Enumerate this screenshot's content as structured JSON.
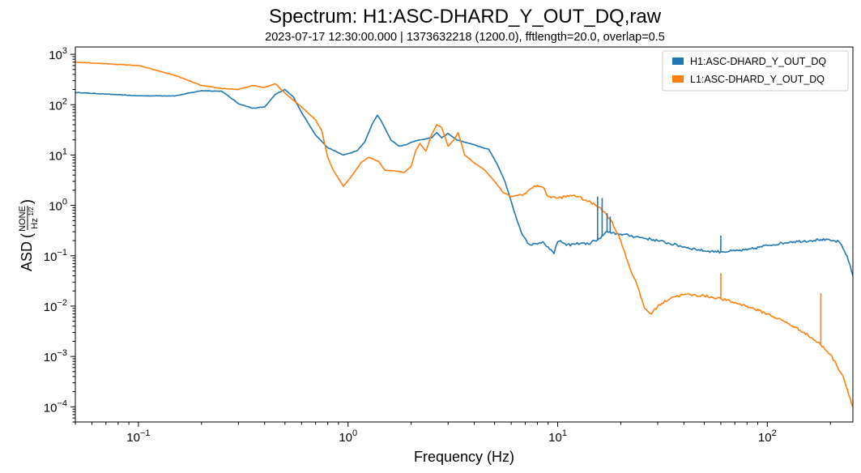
{
  "chart_data": {
    "type": "line",
    "title": "Spectrum: H1:ASC-DHARD_Y_OUT_DQ,raw",
    "subtitle": "2023-07-17 12:30:00.000 | 1373632218 (1200.0), fftlength=20.0, overlap=0.5",
    "xlabel": "Frequency (Hz)",
    "ylabel_prefix": "ASD",
    "ylabel_unit_num": "NONE",
    "ylabel_unit_den": "Hz",
    "ylabel_unit_exp": "1/2",
    "x_scale": "log",
    "y_scale": "log",
    "xlim": [
      0.05,
      256
    ],
    "ylim": [
      5e-05,
      1400
    ],
    "x_ticks": [
      0.1,
      1,
      10,
      100
    ],
    "x_tick_labels": [
      {
        "base": "10",
        "exp": "−1"
      },
      {
        "base": "10",
        "exp": "0"
      },
      {
        "base": "10",
        "exp": "1"
      },
      {
        "base": "10",
        "exp": "2"
      }
    ],
    "y_ticks": [
      0.0001,
      0.001,
      0.01,
      0.1,
      1,
      10,
      100,
      1000
    ],
    "y_tick_labels": [
      {
        "base": "10",
        "exp": "−4"
      },
      {
        "base": "10",
        "exp": "−3"
      },
      {
        "base": "10",
        "exp": "−2"
      },
      {
        "base": "10",
        "exp": "−1"
      },
      {
        "base": "10",
        "exp": "0"
      },
      {
        "base": "10",
        "exp": "1"
      },
      {
        "base": "10",
        "exp": "2"
      },
      {
        "base": "10",
        "exp": "3"
      }
    ],
    "grid": false,
    "legend_position": "top-right",
    "series": [
      {
        "name": "H1:ASC-DHARD_Y_OUT_DQ",
        "color": "#1f77b4",
        "points": [
          [
            0.05,
            175
          ],
          [
            0.1,
            150
          ],
          [
            0.15,
            150
          ],
          [
            0.2,
            190
          ],
          [
            0.25,
            185
          ],
          [
            0.3,
            105
          ],
          [
            0.35,
            85
          ],
          [
            0.4,
            90
          ],
          [
            0.45,
            160
          ],
          [
            0.5,
            200
          ],
          [
            0.55,
            140
          ],
          [
            0.6,
            70
          ],
          [
            0.7,
            25
          ],
          [
            0.8,
            14
          ],
          [
            0.95,
            10
          ],
          [
            1.1,
            12
          ],
          [
            1.2,
            18
          ],
          [
            1.3,
            40
          ],
          [
            1.38,
            62
          ],
          [
            1.45,
            45
          ],
          [
            1.6,
            20
          ],
          [
            1.75,
            15
          ],
          [
            1.9,
            16
          ],
          [
            2.0,
            18
          ],
          [
            2.2,
            20
          ],
          [
            2.5,
            22
          ],
          [
            2.65,
            28
          ],
          [
            2.8,
            22
          ],
          [
            3.0,
            27
          ],
          [
            3.3,
            20
          ],
          [
            3.6,
            18
          ],
          [
            4.0,
            16
          ],
          [
            4.4,
            14
          ],
          [
            4.7,
            13
          ],
          [
            5.2,
            6
          ],
          [
            5.6,
            3
          ],
          [
            6.0,
            1.2
          ],
          [
            6.4,
            0.5
          ],
          [
            6.8,
            0.26
          ],
          [
            7.3,
            0.17
          ],
          [
            8.0,
            0.17
          ],
          [
            8.5,
            0.19
          ],
          [
            9.0,
            0.15
          ],
          [
            9.6,
            0.11
          ],
          [
            10.0,
            0.19
          ],
          [
            10.3,
            0.2
          ],
          [
            11,
            0.16
          ],
          [
            12,
            0.17
          ],
          [
            13,
            0.18
          ],
          [
            14,
            0.17
          ],
          [
            15,
            0.2
          ],
          [
            16,
            0.22
          ],
          [
            17,
            0.3
          ],
          [
            18,
            0.28
          ],
          [
            20,
            0.27
          ],
          [
            25,
            0.23
          ],
          [
            30,
            0.2
          ],
          [
            40,
            0.15
          ],
          [
            50,
            0.125
          ],
          [
            60,
            0.12
          ],
          [
            70,
            0.125
          ],
          [
            80,
            0.13
          ],
          [
            100,
            0.16
          ],
          [
            130,
            0.19
          ],
          [
            160,
            0.2
          ],
          [
            180,
            0.21
          ],
          [
            200,
            0.2
          ],
          [
            220,
            0.19
          ],
          [
            240,
            0.1
          ],
          [
            256,
            0.04
          ]
        ]
      },
      {
        "name": "L1:ASC-DHARD_Y_OUT_DQ",
        "color": "#ff7f0e",
        "points": [
          [
            0.05,
            700
          ],
          [
            0.1,
            600
          ],
          [
            0.15,
            380
          ],
          [
            0.2,
            240
          ],
          [
            0.25,
            210
          ],
          [
            0.3,
            200
          ],
          [
            0.35,
            240
          ],
          [
            0.4,
            220
          ],
          [
            0.45,
            260
          ],
          [
            0.5,
            170
          ],
          [
            0.6,
            90
          ],
          [
            0.7,
            50
          ],
          [
            0.75,
            30
          ],
          [
            0.8,
            9
          ],
          [
            0.85,
            5
          ],
          [
            0.95,
            2.4
          ],
          [
            1.05,
            4
          ],
          [
            1.15,
            7
          ],
          [
            1.25,
            9
          ],
          [
            1.4,
            7.5
          ],
          [
            1.5,
            5
          ],
          [
            1.7,
            4.8
          ],
          [
            1.85,
            4.5
          ],
          [
            2.0,
            6
          ],
          [
            2.1,
            12
          ],
          [
            2.2,
            17
          ],
          [
            2.35,
            12
          ],
          [
            2.5,
            25
          ],
          [
            2.65,
            40
          ],
          [
            2.8,
            35
          ],
          [
            3.0,
            15
          ],
          [
            3.2,
            20
          ],
          [
            3.35,
            28
          ],
          [
            3.6,
            10
          ],
          [
            4.0,
            7
          ],
          [
            4.5,
            5
          ],
          [
            5.0,
            3
          ],
          [
            5.5,
            1.8
          ],
          [
            6.0,
            1.5
          ],
          [
            6.5,
            1.6
          ],
          [
            7.0,
            1.7
          ],
          [
            7.5,
            2.2
          ],
          [
            8.0,
            2.5
          ],
          [
            8.5,
            2.3
          ],
          [
            9.0,
            1.5
          ],
          [
            10,
            1.4
          ],
          [
            12,
            1.6
          ],
          [
            14,
            1.2
          ],
          [
            16,
            0.9
          ],
          [
            18,
            0.5
          ],
          [
            20,
            0.2
          ],
          [
            22,
            0.06
          ],
          [
            24,
            0.025
          ],
          [
            26,
            0.009
          ],
          [
            28,
            0.007
          ],
          [
            30,
            0.01
          ],
          [
            35,
            0.015
          ],
          [
            40,
            0.017
          ],
          [
            50,
            0.016
          ],
          [
            60,
            0.014
          ],
          [
            80,
            0.01
          ],
          [
            100,
            0.007
          ],
          [
            120,
            0.005
          ],
          [
            150,
            0.003
          ],
          [
            180,
            0.0017
          ],
          [
            200,
            0.0011
          ],
          [
            230,
            0.0004
          ],
          [
            256,
            0.0001
          ]
        ]
      }
    ],
    "spikes": [
      {
        "series": 0,
        "f": 15.5,
        "v": 1.5
      },
      {
        "series": 0,
        "f": 16.3,
        "v": 1.4
      },
      {
        "series": 0,
        "f": 17.2,
        "v": 0.7
      },
      {
        "series": 0,
        "f": 17.8,
        "v": 0.6
      },
      {
        "series": 0,
        "f": 60,
        "v": 0.25
      },
      {
        "series": 1,
        "f": 60,
        "v": 0.045
      },
      {
        "series": 1,
        "f": 180,
        "v": 0.018
      }
    ]
  }
}
